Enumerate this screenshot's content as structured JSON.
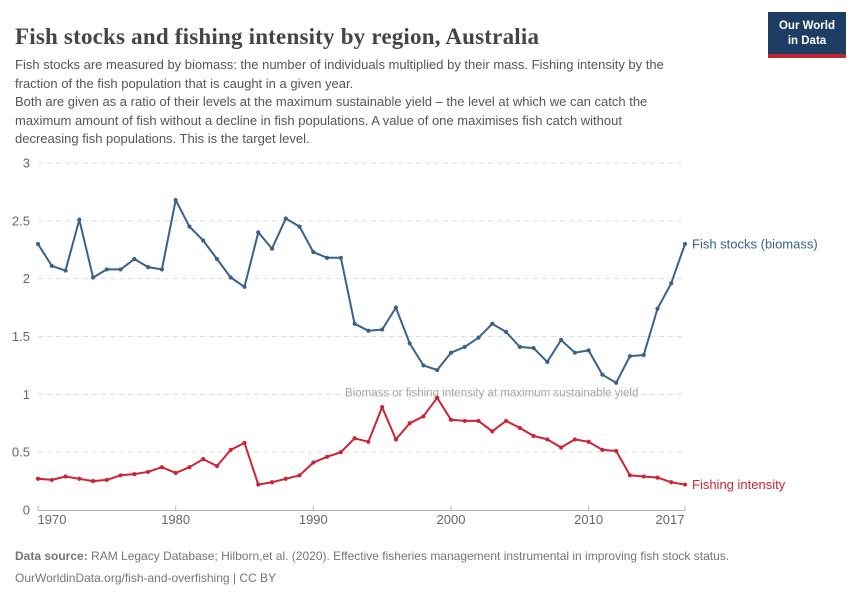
{
  "header": {
    "title": "Fish stocks and fishing intensity by region, Australia",
    "logo": {
      "line1": "Our World",
      "line2": "in Data"
    }
  },
  "subtitle": "Fish stocks are measured by biomass: the number of individuals multiplied by their mass. Fishing intensity by the\nfraction of the fish population that is caught in a given year.\nBoth are given as a ratio of their levels at the maximum sustainable yield – the level at which we can catch the\nmaximum amount of fish without a decline in fish populations. A value of one maximises fish catch without\ndecreasing fish populations. This is the target level.",
  "chart_data": {
    "type": "line",
    "x": [
      1970,
      1971,
      1972,
      1973,
      1974,
      1975,
      1976,
      1977,
      1978,
      1979,
      1980,
      1981,
      1982,
      1983,
      1984,
      1985,
      1986,
      1987,
      1988,
      1989,
      1990,
      1991,
      1992,
      1993,
      1994,
      1995,
      1996,
      1997,
      1998,
      1999,
      2000,
      2001,
      2002,
      2003,
      2004,
      2005,
      2006,
      2007,
      2008,
      2009,
      2010,
      2011,
      2012,
      2013,
      2014,
      2015,
      2016,
      2017
    ],
    "series": [
      {
        "name": "Fish stocks (biomass)",
        "color": "#38618c",
        "values": [
          2.3,
          2.11,
          2.07,
          2.51,
          2.01,
          2.08,
          2.08,
          2.17,
          2.1,
          2.08,
          2.68,
          2.45,
          2.33,
          2.17,
          2.01,
          1.93,
          2.4,
          2.26,
          2.52,
          2.45,
          2.23,
          2.18,
          2.18,
          1.61,
          1.55,
          1.56,
          1.75,
          1.44,
          1.25,
          1.21,
          1.36,
          1.41,
          1.49,
          1.61,
          1.54,
          1.41,
          1.4,
          1.28,
          1.47,
          1.36,
          1.38,
          1.17,
          1.1,
          1.33,
          1.34,
          1.74,
          1.96,
          2.3
        ]
      },
      {
        "name": "Fishing intensity",
        "color": "#cf2333",
        "values": [
          0.27,
          0.26,
          0.29,
          0.27,
          0.25,
          0.26,
          0.3,
          0.31,
          0.33,
          0.37,
          0.32,
          0.37,
          0.44,
          0.38,
          0.52,
          0.58,
          0.22,
          0.24,
          0.27,
          0.3,
          0.41,
          0.46,
          0.5,
          0.62,
          0.59,
          0.89,
          0.61,
          0.75,
          0.81,
          0.97,
          0.78,
          0.77,
          0.77,
          0.68,
          0.77,
          0.71,
          0.64,
          0.61,
          0.54,
          0.61,
          0.59,
          0.52,
          0.51,
          0.3,
          0.29,
          0.28,
          0.24,
          0.22
        ]
      }
    ],
    "ylim": [
      0,
      3
    ],
    "yticks": [
      0,
      0.5,
      1,
      1.5,
      2,
      2.5,
      3
    ],
    "xticks": [
      1970,
      1980,
      1990,
      2000,
      2010,
      2017
    ],
    "grid": "horizontal-dashed",
    "legend_position": "right-end-of-line",
    "annotation": "Biomass or fishing intensity at maximum sustainable yield"
  },
  "footer": {
    "source_label": "Data source:",
    "source_text": " RAM Legacy Database; Hilborn,et al. (2020). Effective fisheries management instrumental in improving fish stock status.",
    "link_line": "OurWorldinData.org/fish-and-overfishing | CC BY"
  },
  "colors": {
    "title_text": "#454545",
    "body_text": "#555555",
    "footer_text": "#757575",
    "tick_text": "#666666",
    "annotation_text": "#a6a6a6",
    "grid_line": "#dedede",
    "axis_line": "#b5b5b5",
    "logo_bg": "#1d3d63",
    "logo_stripe": "#c0262d",
    "series_blue": "#38618c",
    "series_red": "#cf2333"
  }
}
